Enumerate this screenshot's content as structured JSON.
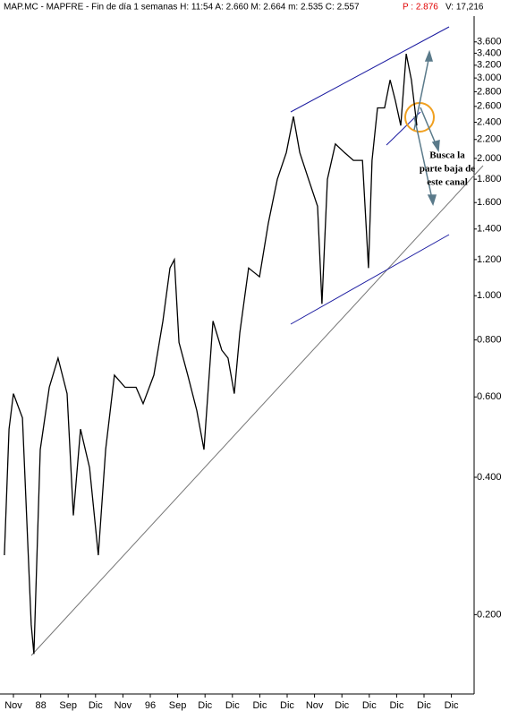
{
  "chart_data": {
    "type": "line",
    "title": "MAP.MC - MAPFRE - Fin de día 1 semanas H: 11:54 A: 2.660 M: 2.664 m: 2.535 C: 2.557",
    "header_extra": [
      "P : 2.876",
      "V: 17,216"
    ],
    "annotation": [
      "Busca la",
      "parte baja de",
      "este canal"
    ],
    "log_scale": true,
    "color": "#000000",
    "x": [
      -0.33,
      -0.16,
      0,
      0.33,
      0.65,
      0.75,
      0.98,
      1.31,
      1.63,
      1.96,
      2.19,
      2.45,
      2.78,
      3.1,
      3.37,
      3.69,
      4.08,
      4.48,
      4.74,
      5.13,
      5.46,
      5.72,
      5.88,
      6.05,
      6.37,
      6.7,
      6.96,
      7.29,
      7.61,
      7.84,
      8.07,
      8.27,
      8.59,
      8.99,
      9.31,
      9.64,
      9.97,
      10.23,
      10.46,
      10.78,
      11.11,
      11.27,
      11.47,
      11.76,
      12.09,
      12.42,
      12.75,
      12.97,
      13.1,
      13.3,
      13.56,
      13.76,
      13.95,
      14.15,
      14.35,
      14.54,
      14.74
    ],
    "values": [
      0.27,
      0.51,
      0.61,
      0.54,
      0.19,
      0.164,
      0.46,
      0.63,
      0.73,
      0.61,
      0.33,
      0.51,
      0.42,
      0.27,
      0.46,
      0.67,
      0.63,
      0.63,
      0.58,
      0.67,
      0.88,
      1.15,
      1.2,
      0.79,
      0.67,
      0.56,
      0.46,
      0.88,
      0.76,
      0.73,
      0.61,
      0.83,
      1.15,
      1.1,
      1.44,
      1.8,
      2.06,
      2.47,
      2.06,
      1.8,
      1.57,
      0.96,
      1.8,
      2.15,
      2.06,
      1.98,
      1.98,
      1.15,
      1.98,
      2.58,
      2.58,
      2.97,
      2.68,
      2.36,
      3.39,
      2.97,
      2.36
    ],
    "xlim": [
      -0.49,
      16.83
    ],
    "xticks": [
      {
        "value": 0,
        "label": "Nov"
      },
      {
        "value": 1,
        "label": "88"
      },
      {
        "value": 2,
        "label": "Sep"
      },
      {
        "value": 3,
        "label": "Dic"
      },
      {
        "value": 4,
        "label": "Nov"
      },
      {
        "value": 5,
        "label": "96"
      },
      {
        "value": 6,
        "label": "Sep"
      },
      {
        "value": 7,
        "label": "Dic"
      },
      {
        "value": 8,
        "label": "Dic"
      },
      {
        "value": 9,
        "label": "Dic"
      },
      {
        "value": 10,
        "label": "Dic"
      },
      {
        "value": 11,
        "label": "Nov"
      },
      {
        "value": 12,
        "label": "Dic"
      },
      {
        "value": 13,
        "label": "Dic"
      },
      {
        "value": 14,
        "label": "Dic"
      },
      {
        "value": 15,
        "label": "Dic"
      },
      {
        "value": 16,
        "label": "Dic"
      }
    ],
    "ylim": [
      0.134,
      4.1
    ],
    "yticks": [
      {
        "value": 3.6,
        "label": "3.600"
      },
      {
        "value": 3.4,
        "label": "3.400"
      },
      {
        "value": 3.2,
        "label": "3.200"
      },
      {
        "value": 3,
        "label": "3.000"
      },
      {
        "value": 2.8,
        "label": "2.800"
      },
      {
        "value": 2.6,
        "label": "2.600"
      },
      {
        "value": 2.4,
        "label": "2.400"
      },
      {
        "value": 2.2,
        "label": "2.200"
      },
      {
        "value": 2,
        "label": "2.000"
      },
      {
        "value": 1.8,
        "label": "1.800"
      },
      {
        "value": 1.6,
        "label": "1.600"
      },
      {
        "value": 1.4,
        "label": "1.400"
      },
      {
        "value": 1.2,
        "label": "1.200"
      },
      {
        "value": 1,
        "label": "1.000"
      },
      {
        "value": 0.8,
        "label": "0.800"
      },
      {
        "value": 0.6,
        "label": "0.600"
      },
      {
        "value": 0.4,
        "label": "0.400"
      },
      {
        "value": 0.2,
        "label": "0.200"
      }
    ]
  }
}
